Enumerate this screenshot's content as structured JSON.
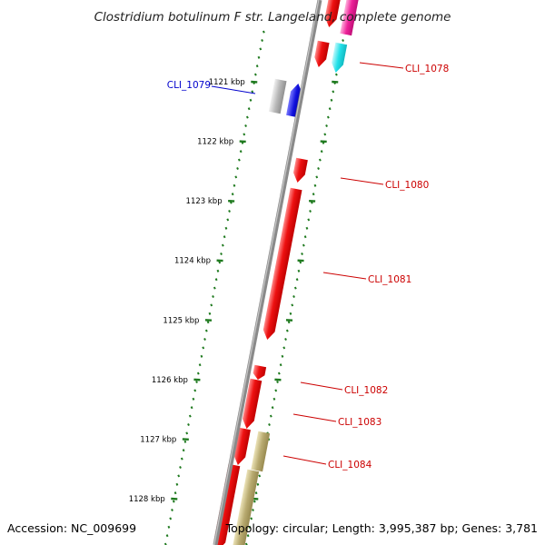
{
  "title": "Clostridium botulinum F str. Langeland, complete genome",
  "footer": {
    "accession": "Accession: NC_009699",
    "topology": "Topology: circular; Length: 3,995,387 bp; Genes: 3,781"
  },
  "colors": {
    "backbone": "#8a8a8a",
    "tick": "#1f7a1f",
    "forward_label": "#cc0000",
    "reverse_label": "#0000cc",
    "gene_red": "#ee1111",
    "gene_cyan": "#22e0e8",
    "gene_magenta": "#ee2299",
    "gene_blue": "#1111dd",
    "gene_gray": "#b8b8b8",
    "gene_olive": "#b8aa70"
  },
  "ticks": [
    {
      "kbp": 1121,
      "label": "1121 kbp"
    },
    {
      "kbp": 1122,
      "label": "1122 kbp"
    },
    {
      "kbp": 1123,
      "label": "1123 kbp"
    },
    {
      "kbp": 1124,
      "label": "1124 kbp"
    },
    {
      "kbp": 1125,
      "label": "1125 kbp"
    },
    {
      "kbp": 1126,
      "label": "1126 kbp"
    },
    {
      "kbp": 1127,
      "label": "1127 kbp"
    },
    {
      "kbp": 1128,
      "label": "1128 kbp"
    }
  ],
  "genes": [
    {
      "label": "CLI_1078",
      "strand": "forward"
    },
    {
      "label": "CLI_1079",
      "strand": "reverse"
    },
    {
      "label": "CLI_1080",
      "strand": "forward"
    },
    {
      "label": "CLI_1081",
      "strand": "forward"
    },
    {
      "label": "CLI_1082",
      "strand": "forward"
    },
    {
      "label": "CLI_1083",
      "strand": "forward"
    },
    {
      "label": "CLI_1084",
      "strand": "forward"
    }
  ]
}
